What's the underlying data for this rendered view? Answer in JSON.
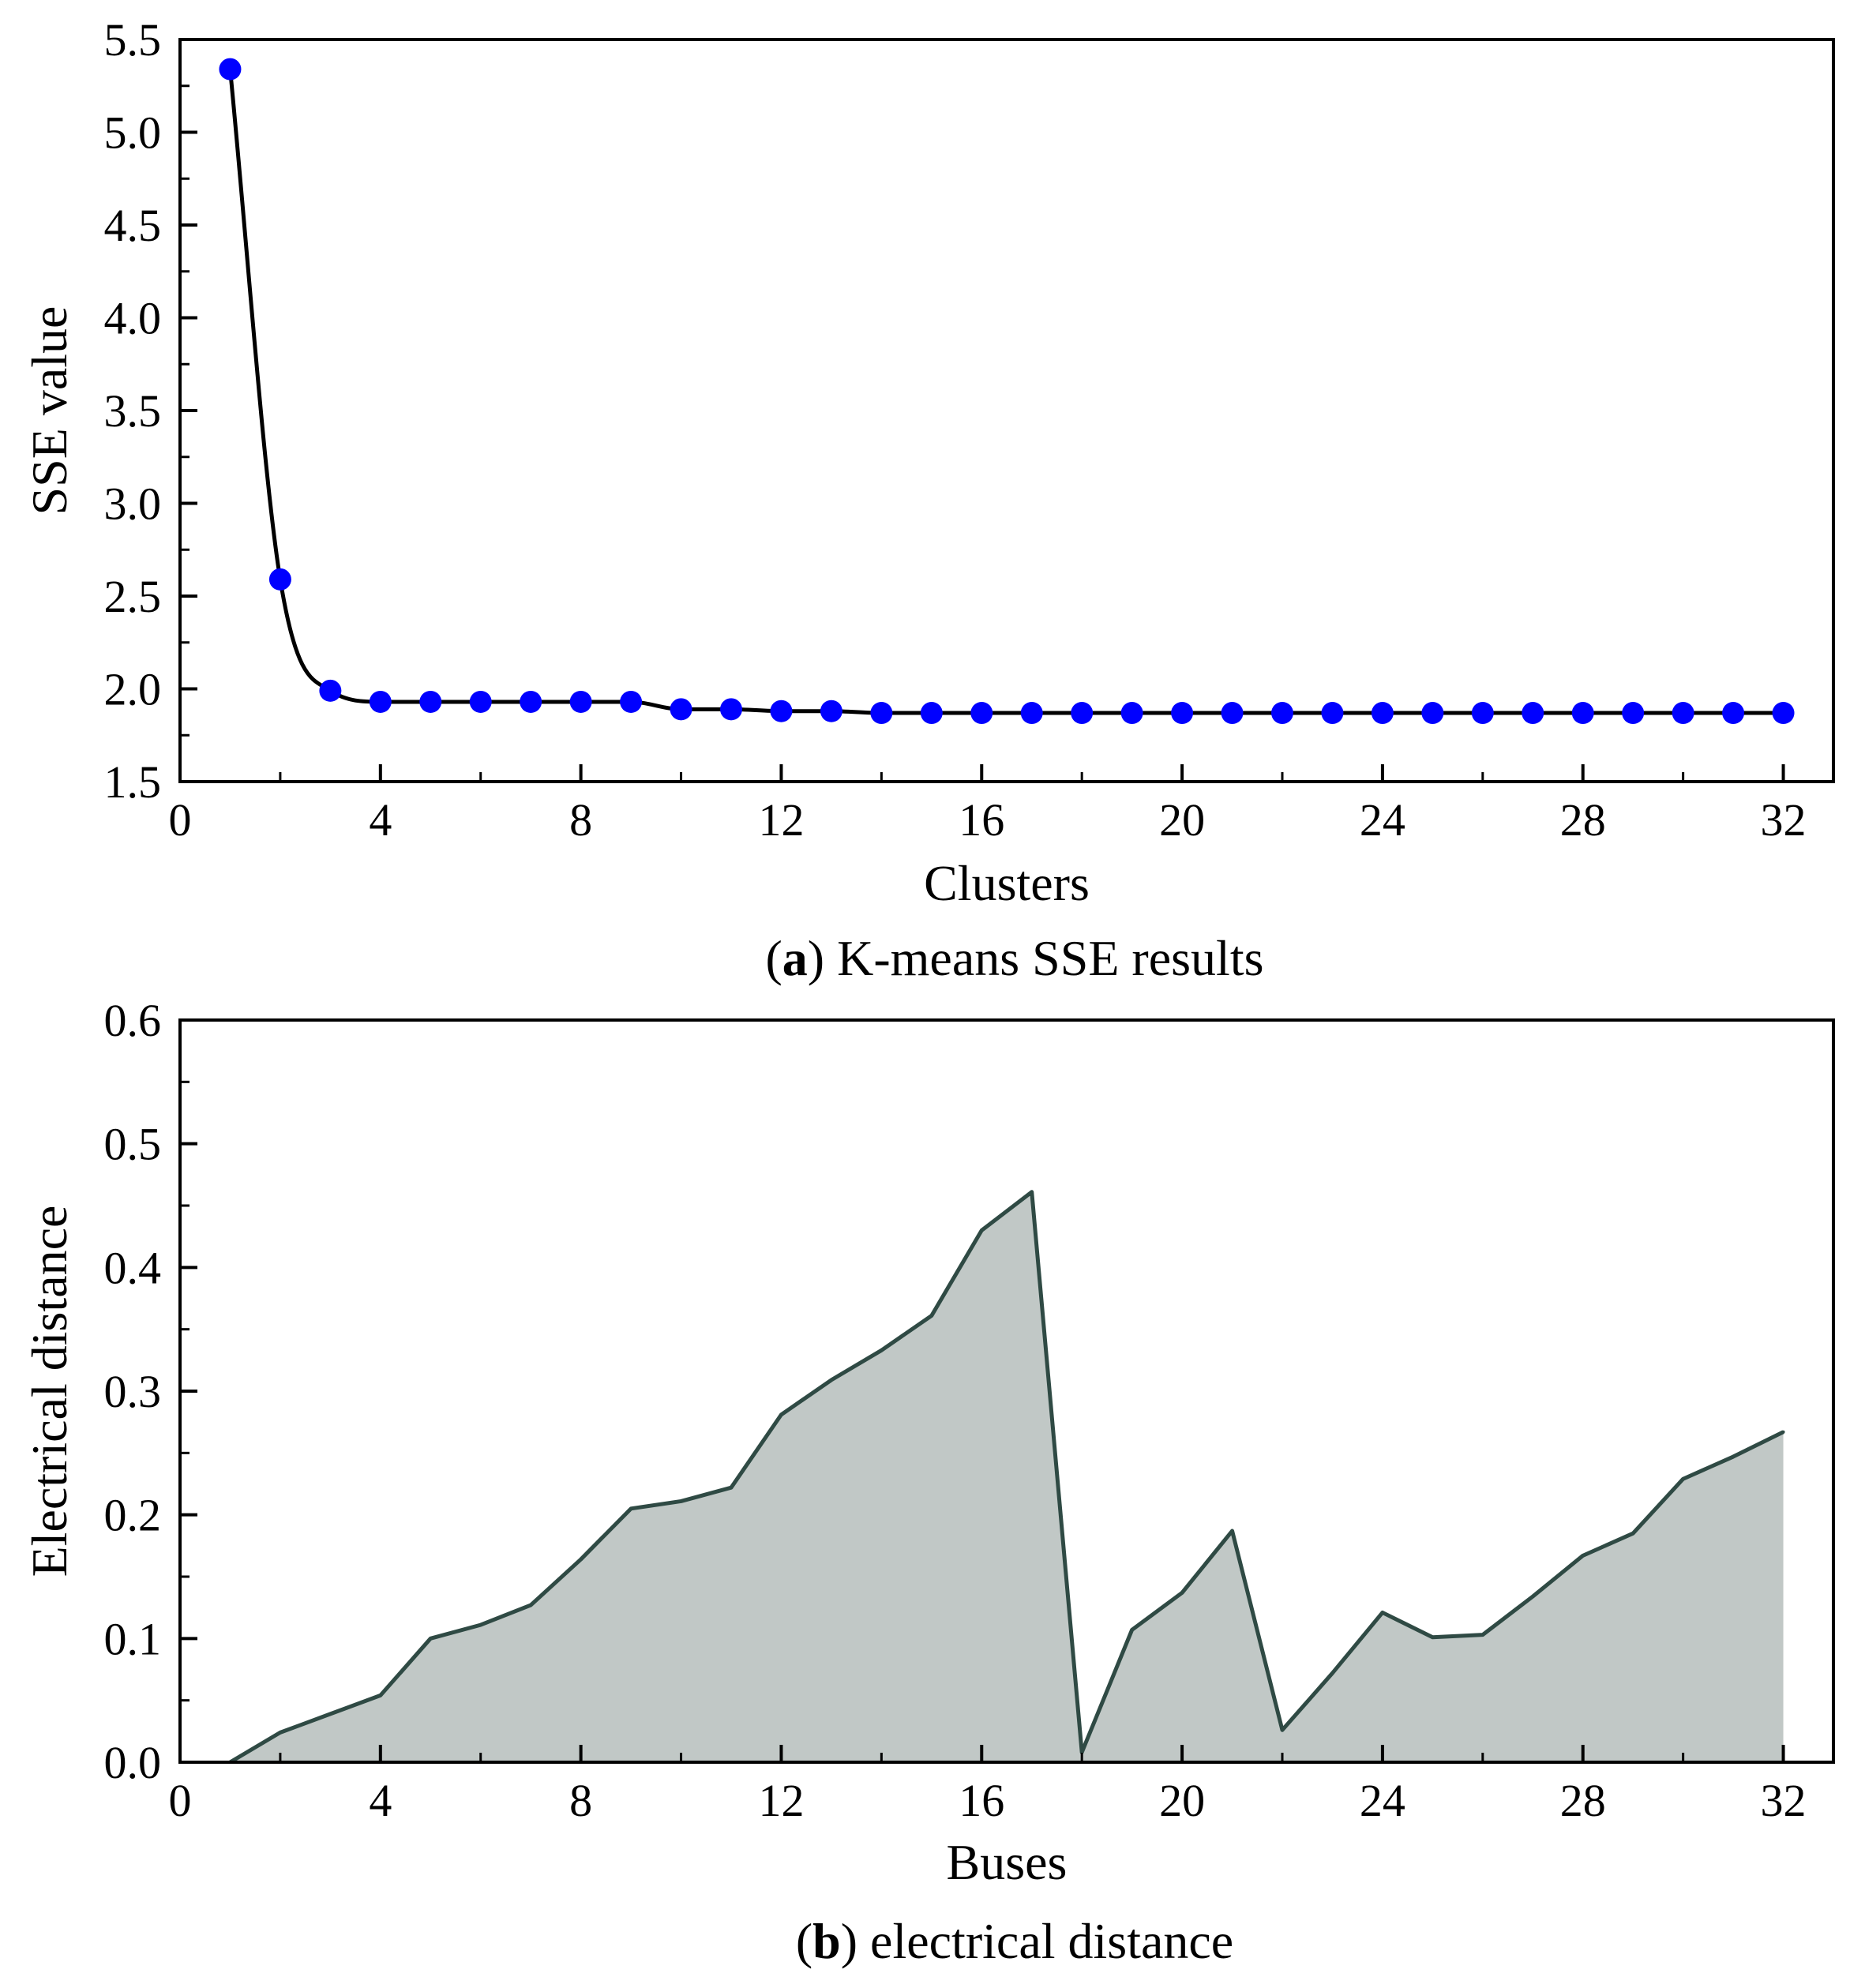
{
  "chart_data": [
    {
      "type": "line",
      "panel": "a",
      "caption_letter": "a",
      "caption_text": "K-means SSE results",
      "xlabel": "Clusters",
      "ylabel": "SSE value",
      "xlim": [
        0,
        33
      ],
      "ylim": [
        1.5,
        5.5
      ],
      "xticks": [
        0,
        4,
        8,
        12,
        16,
        20,
        24,
        28,
        32
      ],
      "yticks": [
        1.5,
        2.0,
        2.5,
        3.0,
        3.5,
        4.0,
        4.5,
        5.0,
        5.5
      ],
      "xtick_labels": [
        "0",
        "4",
        "8",
        "12",
        "16",
        "20",
        "24",
        "28",
        "32"
      ],
      "ytick_labels": [
        "1.5",
        "2.0",
        "2.5",
        "3.0",
        "3.5",
        "4.0",
        "4.5",
        "5.0",
        "5.5"
      ],
      "grid": false,
      "colors": {
        "line": "#000000",
        "marker": "#0000ff"
      },
      "series": [
        {
          "name": "SSE",
          "x": [
            1,
            2,
            3,
            4,
            5,
            6,
            7,
            8,
            9,
            10,
            11,
            12,
            13,
            14,
            15,
            16,
            17,
            18,
            19,
            20,
            21,
            22,
            23,
            24,
            25,
            26,
            27,
            28,
            29,
            30,
            31,
            32
          ],
          "values": [
            5.34,
            2.59,
            1.99,
            1.93,
            1.93,
            1.93,
            1.93,
            1.93,
            1.93,
            1.89,
            1.89,
            1.88,
            1.88,
            1.87,
            1.87,
            1.87,
            1.87,
            1.87,
            1.87,
            1.87,
            1.87,
            1.87,
            1.87,
            1.87,
            1.87,
            1.87,
            1.87,
            1.87,
            1.87,
            1.87,
            1.87,
            1.87
          ]
        }
      ]
    },
    {
      "type": "area",
      "panel": "b",
      "caption_letter": "b",
      "caption_text": "electrical distance",
      "xlabel": "Buses",
      "ylabel": "Electrical distance",
      "xlim": [
        0,
        33
      ],
      "ylim": [
        0.0,
        0.6
      ],
      "xticks": [
        0,
        4,
        8,
        12,
        16,
        20,
        24,
        28,
        32
      ],
      "yticks": [
        0.0,
        0.1,
        0.2,
        0.3,
        0.4,
        0.5,
        0.6
      ],
      "xtick_labels": [
        "0",
        "4",
        "8",
        "12",
        "16",
        "20",
        "24",
        "28",
        "32"
      ],
      "ytick_labels": [
        "0.0",
        "0.1",
        "0.2",
        "0.3",
        "0.4",
        "0.5",
        "0.6"
      ],
      "grid": false,
      "colors": {
        "line": "#2f4a44",
        "fill": "#c1c8c6"
      },
      "series": [
        {
          "name": "Electrical distance",
          "x": [
            1,
            2,
            3,
            4,
            5,
            6,
            7,
            8,
            9,
            10,
            11,
            12,
            13,
            14,
            15,
            16,
            17,
            18,
            19,
            20,
            21,
            22,
            23,
            24,
            25,
            26,
            27,
            28,
            29,
            30,
            31,
            32
          ],
          "values": [
            0.0,
            0.024,
            0.039,
            0.054,
            0.1,
            0.111,
            0.127,
            0.164,
            0.205,
            0.211,
            0.222,
            0.281,
            0.309,
            0.333,
            0.361,
            0.43,
            0.461,
            0.008,
            0.107,
            0.137,
            0.187,
            0.026,
            0.072,
            0.121,
            0.101,
            0.103,
            0.134,
            0.167,
            0.185,
            0.229,
            0.247,
            0.267
          ]
        }
      ]
    }
  ]
}
